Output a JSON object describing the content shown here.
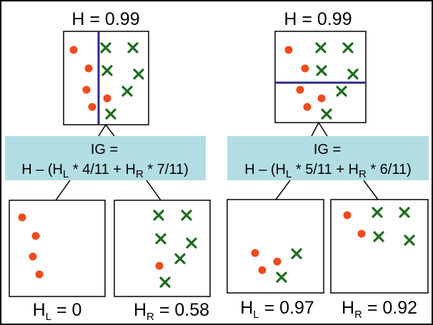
{
  "colors": {
    "circle": "#f04a1a",
    "cross": "#1e6b1e",
    "split_line": "#2c2a8a",
    "ig_band": "#b2dde2",
    "stroke": "#000000"
  },
  "panels": [
    {
      "parent": {
        "label": "H = 0.99"
      },
      "split": "vertical",
      "ig": {
        "line1": "IG =",
        "line2_pre": "H – (H",
        "sub_l": "L",
        "line2_mid": " * 4/11 + H",
        "sub_r": "R",
        "line2_post": " * 7/11)"
      },
      "left": {
        "h": "H",
        "sub": "L",
        "value": " = 0"
      },
      "right": {
        "h": "H",
        "sub": "R",
        "value": " = 0.58"
      }
    },
    {
      "parent": {
        "label": "H = 0.99"
      },
      "split": "horizontal",
      "ig": {
        "line1": "IG =",
        "line2_pre": "H – (H",
        "sub_l": "L",
        "line2_mid": " * 5/11 + H",
        "sub_r": "R",
        "line2_post": " * 6/11)"
      },
      "left": {
        "h": "H",
        "sub": "L",
        "value": " = 0.97"
      },
      "right": {
        "h": "H",
        "sub": "R",
        "value": " = 0.92"
      }
    }
  ]
}
